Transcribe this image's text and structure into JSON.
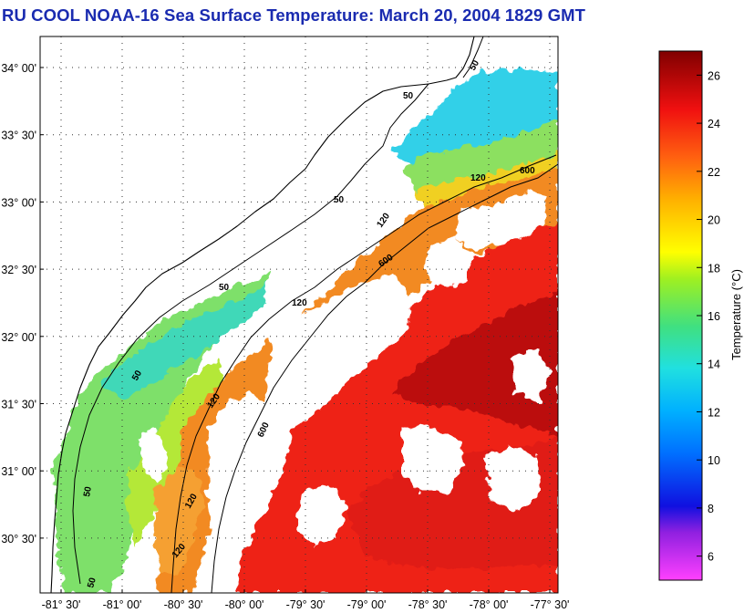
{
  "title": "RU COOL  NOAA-16  Sea Surface Temperature:  March 20, 2004 1829 GMT",
  "map": {
    "lat_labels": [
      {
        "text": "34° 00'",
        "value": 34.0
      },
      {
        "text": "33° 30'",
        "value": 33.5
      },
      {
        "text": "33° 00'",
        "value": 33.0
      },
      {
        "text": "32° 30'",
        "value": 32.5
      },
      {
        "text": "32° 00'",
        "value": 32.0
      },
      {
        "text": "31° 30'",
        "value": 31.5
      },
      {
        "text": "31° 00'",
        "value": 31.0
      },
      {
        "text": "30° 30'",
        "value": 30.5
      }
    ],
    "lon_labels": [
      {
        "text": "-81° 30'",
        "value": -81.5
      },
      {
        "text": "-81° 00'",
        "value": -81.0
      },
      {
        "text": "-80° 30'",
        "value": -80.5
      },
      {
        "text": "-80° 00'",
        "value": -80.0
      },
      {
        "text": "-79° 30'",
        "value": -79.5
      },
      {
        "text": "-79° 00'",
        "value": -79.0
      },
      {
        "text": "-78° 30'",
        "value": -78.5
      },
      {
        "text": "-78° 00'",
        "value": -78.0
      },
      {
        "text": "-77° 30'",
        "value": -77.5
      }
    ],
    "contour_labels": [
      "50",
      "120",
      "600"
    ]
  },
  "colorbar": {
    "title": "Temperature (°C)",
    "tick_labels": [
      "26",
      "24",
      "22",
      "20",
      "18",
      "16",
      "14",
      "12",
      "10",
      "8",
      "6"
    ],
    "range": [
      5,
      27
    ]
  }
}
